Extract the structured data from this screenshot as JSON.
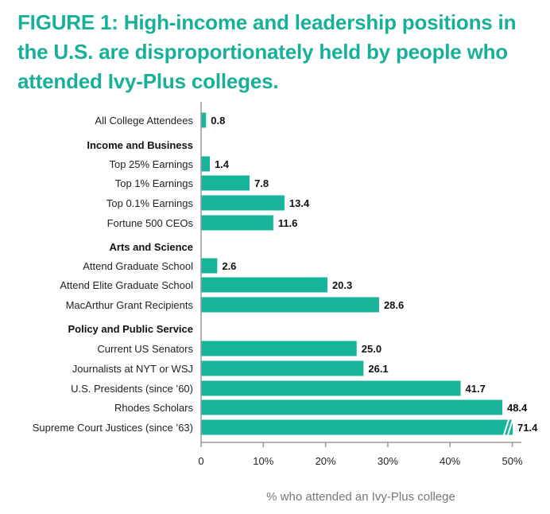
{
  "title": "FIGURE 1: High-income and leadership positions in the U.S. are disproportionately held by people who attended Ivy-Plus colleges.",
  "colors": {
    "bar": "#18b49b",
    "title": "#19b09a",
    "axis": "#999999"
  },
  "chart_data": {
    "type": "bar",
    "orientation": "horizontal",
    "xlabel": "% who attended an Ivy-Plus college",
    "xlim": [
      0,
      50
    ],
    "xticks": [
      "0",
      "10%",
      "20%",
      "30%",
      "40%",
      "50%"
    ],
    "rows": [
      {
        "kind": "bar",
        "label": "All College Attendees",
        "value": 0.8,
        "value_label": "0.8"
      },
      {
        "kind": "group",
        "label": "Income and Business"
      },
      {
        "kind": "bar",
        "label": "Top 25% Earnings",
        "value": 1.4,
        "value_label": "1.4"
      },
      {
        "kind": "bar",
        "label": "Top 1% Earnings",
        "value": 7.8,
        "value_label": "7.8"
      },
      {
        "kind": "bar",
        "label": "Top 0.1% Earnings",
        "value": 13.4,
        "value_label": "13.4"
      },
      {
        "kind": "bar",
        "label": "Fortune 500 CEOs",
        "value": 11.6,
        "value_label": "11.6"
      },
      {
        "kind": "group",
        "label": "Arts and Science"
      },
      {
        "kind": "bar",
        "label": "Attend Graduate School",
        "value": 2.6,
        "value_label": "2.6"
      },
      {
        "kind": "bar",
        "label": "Attend Elite Graduate School",
        "value": 20.3,
        "value_label": "20.3"
      },
      {
        "kind": "bar",
        "label": "MacArthur Grant Recipients",
        "value": 28.6,
        "value_label": "28.6"
      },
      {
        "kind": "group",
        "label": "Policy and Public Service"
      },
      {
        "kind": "bar",
        "label": "Current US Senators",
        "value": 25.0,
        "value_label": "25.0"
      },
      {
        "kind": "bar",
        "label": "Journalists at NYT or WSJ",
        "value": 26.1,
        "value_label": "26.1"
      },
      {
        "kind": "bar",
        "label": "U.S. Presidents (since ’60)",
        "value": 41.7,
        "value_label": "41.7"
      },
      {
        "kind": "bar",
        "label": "Rhodes Scholars",
        "value": 48.4,
        "value_label": "48.4"
      },
      {
        "kind": "bar",
        "label": "Supreme Court Justices (since ’63)",
        "value": 71.4,
        "value_label": "71.4",
        "axis_break": true
      }
    ]
  }
}
